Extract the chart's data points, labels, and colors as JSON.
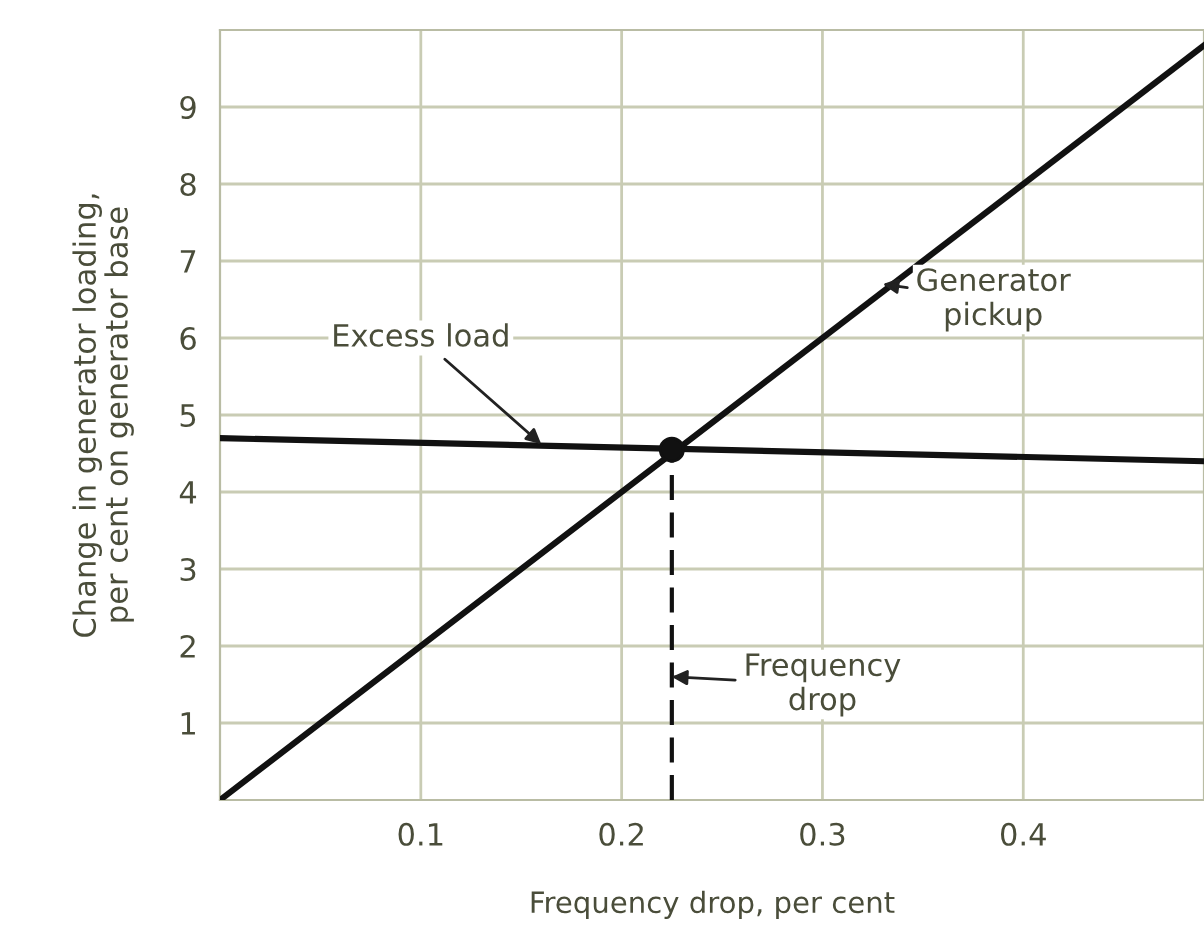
{
  "chart_data": {
    "type": "line",
    "xlabel": "Frequency drop, per cent",
    "ylabel": "Change in generator loading,\nper cent on generator base",
    "xlim": [
      0,
      0.49
    ],
    "ylim": [
      0,
      10
    ],
    "xticks": [
      0.1,
      0.2,
      0.3,
      0.4
    ],
    "yticks": [
      1,
      2,
      3,
      4,
      5,
      6,
      7,
      8,
      9
    ],
    "grid": true,
    "series": [
      {
        "color": "#111111",
        "x": [
          0,
          0.49
        ],
        "values": [
          0,
          9.8
        ],
        "line_style": "solid"
      },
      {
        "color": "#111111",
        "x": [
          0,
          0.49
        ],
        "values": [
          4.7,
          4.4
        ],
        "line_style": "solid"
      },
      {
        "color": "#111111",
        "x": [
          0.225,
          0.225
        ],
        "values": [
          0,
          4.55
        ],
        "line_style": "dashed"
      },
      {
        "type": "scatter",
        "color": "#111111",
        "x": [
          0.225
        ],
        "values": [
          4.55
        ],
        "marker": "circle"
      }
    ],
    "annotations": [
      {
        "text": "Excess load",
        "x": 0.16,
        "y": 4.62
      },
      {
        "text": "Generator\npickup",
        "x": 0.33,
        "y": 6.7
      },
      {
        "text": "Frequency\ndrop",
        "x": 0.225,
        "y": 1.6
      }
    ]
  }
}
